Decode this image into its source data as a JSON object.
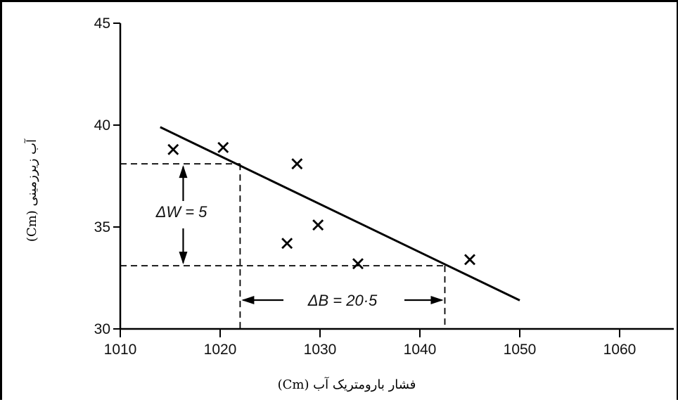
{
  "chart_data": {
    "type": "scatter",
    "title": "",
    "xlabel": "فشار بارومتریک آب (Cm)",
    "ylabel": "آب زیرزمینی (Cm)",
    "xlim": [
      1010,
      1065
    ],
    "ylim": [
      30,
      45.5
    ],
    "xticks": [
      1010,
      1020,
      1030,
      1040,
      1050,
      1060
    ],
    "yticks": [
      30,
      35,
      40,
      45
    ],
    "xtick_labels": [
      "1010",
      "1020",
      "1030",
      "1040",
      "1050",
      "1060"
    ],
    "ytick_labels": [
      "30",
      "35",
      "40",
      "45"
    ],
    "grid": false,
    "points": [
      {
        "x": 1015.3,
        "y": 38.8
      },
      {
        "x": 1020.3,
        "y": 38.9
      },
      {
        "x": 1027.7,
        "y": 38.1
      },
      {
        "x": 1026.7,
        "y": 34.2
      },
      {
        "x": 1029.8,
        "y": 35.1
      },
      {
        "x": 1033.8,
        "y": 33.2
      },
      {
        "x": 1045.0,
        "y": 33.4
      }
    ],
    "fit_line": {
      "x": [
        1014,
        1050
      ],
      "y": [
        39.9,
        31.4
      ]
    },
    "guides": {
      "w_upper": 38.1,
      "w_lower": 33.1,
      "b_left": 1022,
      "b_right": 1042.5
    },
    "annotations": {
      "delta_w": "ΔW = 5",
      "delta_b": "ΔB = 20·5"
    }
  }
}
